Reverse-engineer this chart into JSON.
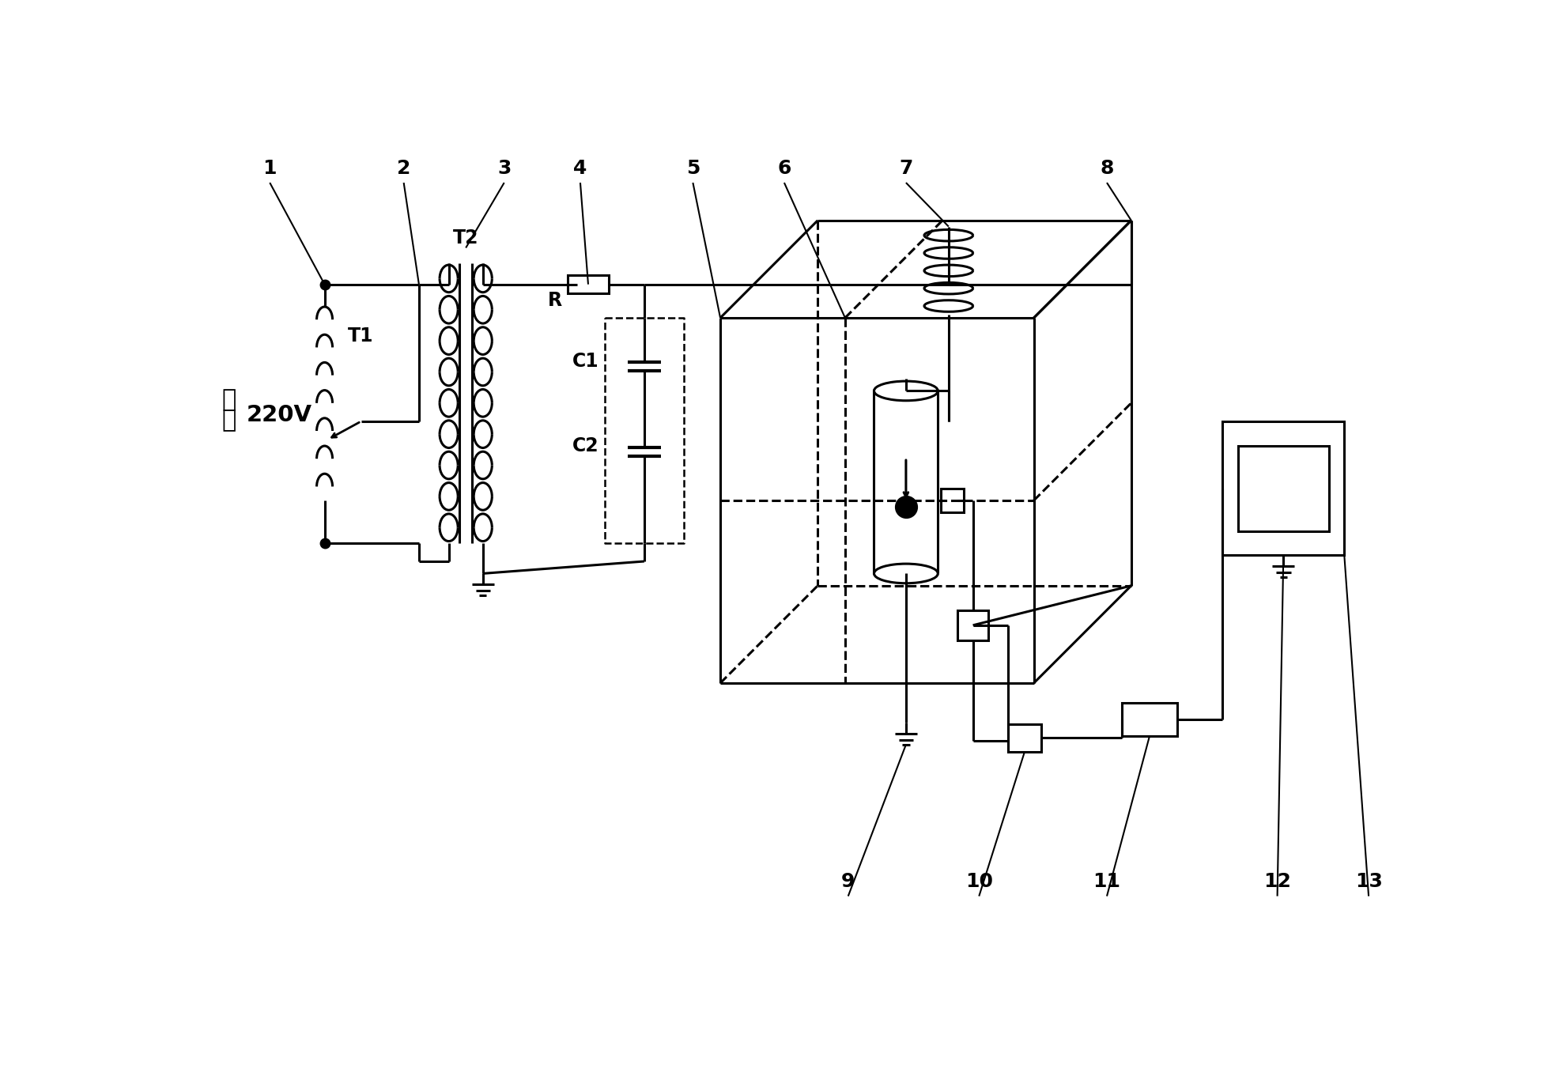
{
  "bg": "#ffffff",
  "lc": "#000000",
  "lw": 2.2,
  "label_fs": 17,
  "num_fs": 18,
  "chinese_jiaoliu": "交流",
  "voltage": "220V",
  "T1": "T1",
  "T2": "T2",
  "R": "R",
  "C1": "C1",
  "C2": "C2"
}
